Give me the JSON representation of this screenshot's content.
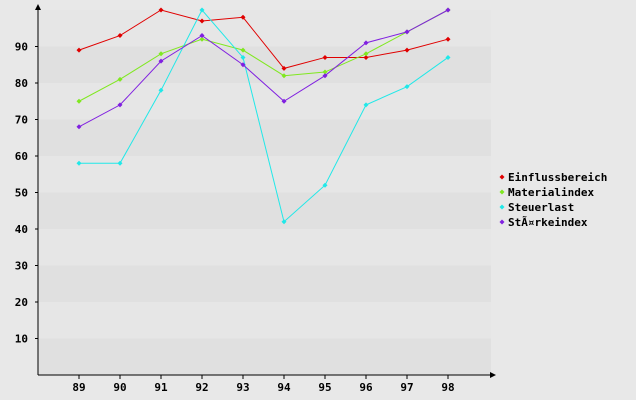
{
  "chart_data": {
    "type": "line",
    "title": "",
    "xlabel": "",
    "ylabel": "",
    "categories": [
      "89",
      "90",
      "91",
      "92",
      "93",
      "94",
      "95",
      "96",
      "97",
      "98"
    ],
    "y_ticks": [
      "10",
      "20",
      "30",
      "40",
      "50",
      "60",
      "70",
      "80",
      "90"
    ],
    "ylim": [
      0,
      100
    ],
    "grid": "horizontal bands",
    "legend_position": "right",
    "series": [
      {
        "name": "Einflussbereich",
        "color": "#e00000",
        "values": [
          89,
          93,
          100,
          97,
          98,
          84,
          87,
          87,
          89,
          92
        ]
      },
      {
        "name": "Materialindex",
        "color": "#80e820",
        "values": [
          75,
          81,
          88,
          92,
          89,
          82,
          83,
          88,
          94,
          100
        ]
      },
      {
        "name": "Steuerlast",
        "color": "#20e8e8",
        "values": [
          58,
          58,
          78,
          100,
          87,
          42,
          52,
          74,
          79,
          87
        ]
      },
      {
        "name": "StÃ¤rkeindex",
        "color": "#8020e0",
        "values": [
          68,
          74,
          86,
          93,
          85,
          75,
          82,
          91,
          94,
          100
        ]
      }
    ]
  }
}
